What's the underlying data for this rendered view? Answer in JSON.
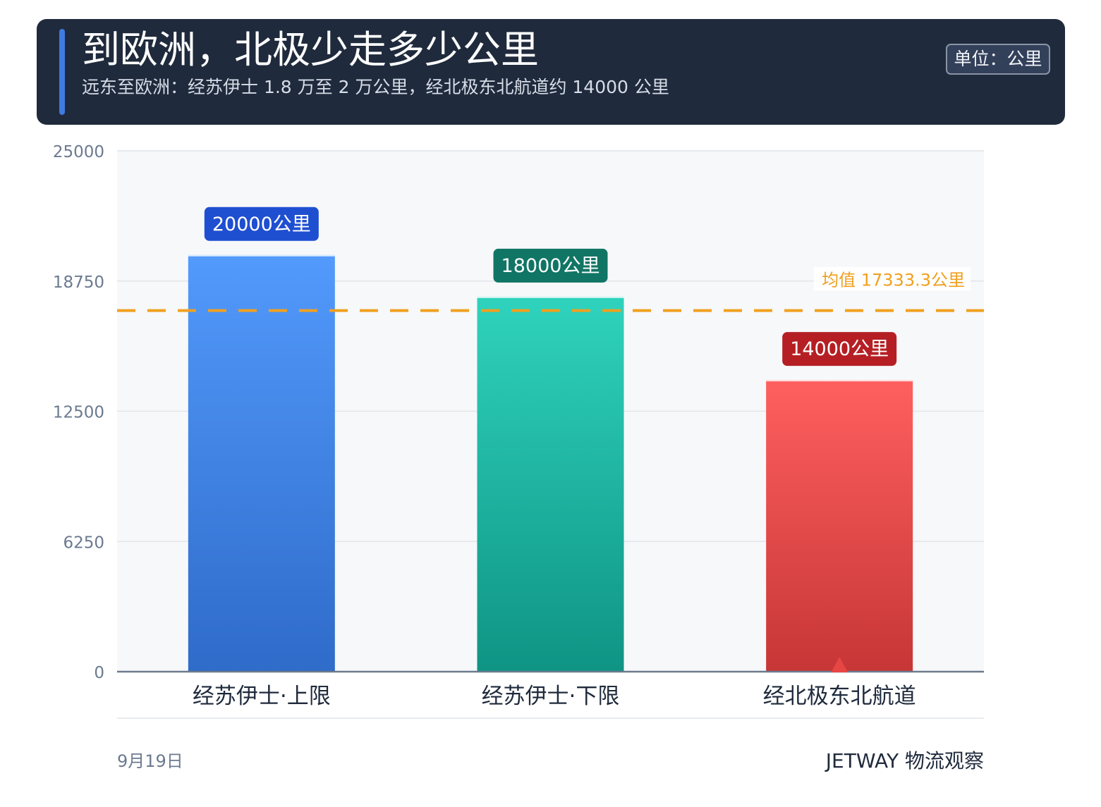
{
  "header": {
    "title": "到欧洲，北极少走多少公里",
    "subtitle": "远东至欧洲：经苏伊士 1.8 万至 2 万公里，经北极东北航道约 14000 公里",
    "unit_badge": "单位：公里"
  },
  "chart_data": {
    "type": "bar",
    "categories": [
      "经苏伊士·上限",
      "经苏伊士·下限",
      "经北极东北航道"
    ],
    "values": [
      20000,
      18000,
      14000
    ],
    "value_labels": [
      "20000公里",
      "18000公里",
      "14000公里"
    ],
    "bar_colors": [
      [
        "#529afc",
        "#2f6bc9"
      ],
      [
        "#2fd3bd",
        "#0f9484"
      ],
      [
        "#ff5f5f",
        "#c73636"
      ]
    ],
    "label_colors": [
      "#1f4fd1",
      "#117565",
      "#b51f24"
    ],
    "ylim": [
      0,
      25000
    ],
    "yticks": [
      0,
      6250,
      12500,
      18750,
      25000
    ],
    "ytick_labels": [
      "0",
      "6250",
      "12500",
      "18750",
      "25000"
    ],
    "grid": true,
    "mean_line": {
      "value": 17333.3,
      "label": "均值 17333.3公里",
      "color": "#f0a020"
    },
    "highlight_marker": {
      "category_index": 2,
      "color": "#e84545"
    }
  },
  "footer": {
    "date": "9月19日",
    "brand": "JETWAY 物流观察"
  }
}
